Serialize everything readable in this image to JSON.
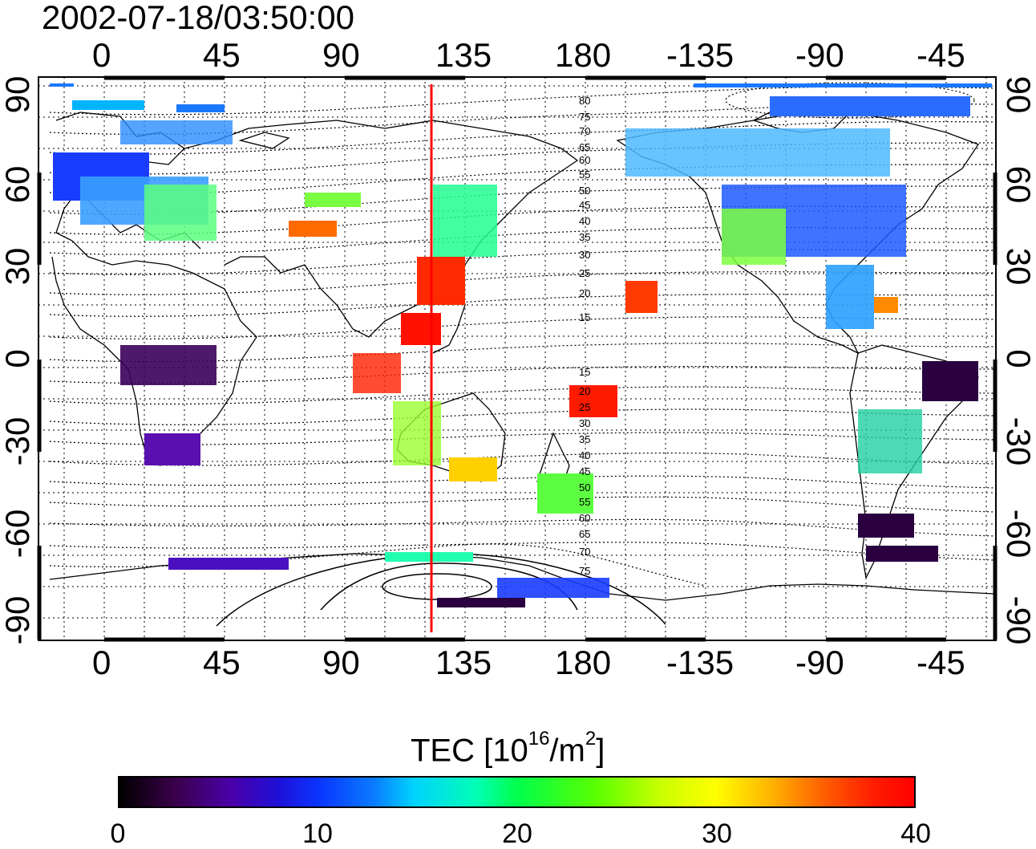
{
  "title": "2002-07-18/03:50:00",
  "map": {
    "top_ticks": [
      "0",
      "45",
      "90",
      "135",
      "180",
      "-135",
      "-90",
      "-45"
    ],
    "bottom_ticks": [
      "0",
      "45",
      "90",
      "135",
      "180",
      "-135",
      "-90",
      "-45"
    ],
    "left_ticks": [
      "90",
      "60",
      "30",
      "0",
      "-30",
      "-60",
      "-90"
    ],
    "right_ticks": [
      "90",
      "60",
      "30",
      "0",
      "-30",
      "-60",
      "-90"
    ],
    "contour_labels_north": [
      "80",
      "75",
      "70",
      "65",
      "60",
      "55",
      "50",
      "45",
      "40",
      "35",
      "30",
      "25",
      "20",
      "15"
    ],
    "contour_labels_south": [
      "15",
      "20",
      "25",
      "30",
      "35",
      "40",
      "45",
      "50",
      "55",
      "60",
      "65",
      "70",
      "75"
    ],
    "meridian_marker_color": "#ff0000"
  },
  "colorbar": {
    "title_main": "TEC  [10",
    "title_sup1": "16",
    "title_mid": "/m",
    "title_sup2": "2",
    "title_end": "]",
    "ticks": [
      "0",
      "10",
      "20",
      "30",
      "40"
    ],
    "min": 0,
    "max": 40
  }
}
